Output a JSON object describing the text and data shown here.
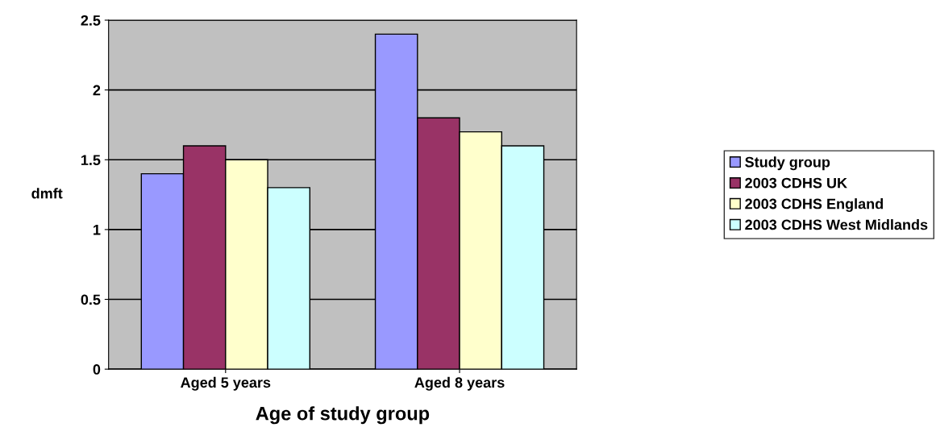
{
  "chart_data": {
    "type": "bar",
    "xlabel": "Age of study group",
    "ylabel": "dmft",
    "categories": [
      "Aged 5 years",
      "Aged 8 years"
    ],
    "series": [
      {
        "name": "Study group",
        "color": "#9999ff",
        "values": [
          1.4,
          2.4
        ]
      },
      {
        "name": "2003 CDHS UK",
        "color": "#993366",
        "values": [
          1.6,
          1.8
        ]
      },
      {
        "name": "2003 CDHS England",
        "color": "#ffffcc",
        "values": [
          1.5,
          1.7
        ]
      },
      {
        "name": "2003 CDHS West Midlands",
        "color": "#ccffff",
        "values": [
          1.3,
          1.6
        ]
      }
    ],
    "ylim": [
      0,
      2.5
    ],
    "yticks": [
      0,
      0.5,
      1,
      1.5,
      2,
      2.5
    ],
    "grid": "y",
    "legend": "right"
  }
}
